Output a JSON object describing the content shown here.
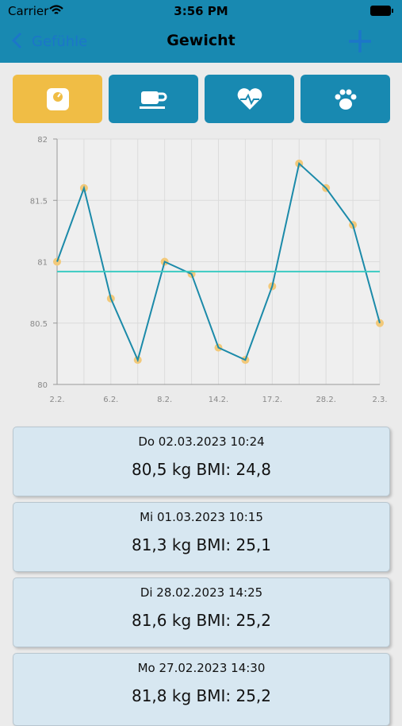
{
  "status_bar": {
    "carrier": "Carrier",
    "time": "3:56 PM"
  },
  "nav": {
    "back": "Gefühle",
    "title": "Gewicht"
  },
  "chart_data": {
    "type": "line",
    "categories": [
      "2.2.",
      null,
      "6.2.",
      null,
      "8.2.",
      null,
      "14.2.",
      null,
      "17.2.",
      null,
      "28.2.",
      null,
      "2.3."
    ],
    "values": [
      81,
      81.6,
      80.7,
      80.2,
      81,
      80.9,
      80.3,
      80.2,
      80.8,
      81.8,
      81.6,
      81.3,
      80.5
    ],
    "color": "#1b8aa9",
    "marker_color": "#f2c97a",
    "reference_line": 80.92,
    "reference_color": "#3ccbc2",
    "ylim": [
      80,
      82
    ],
    "yticks": [
      80,
      80.5,
      81,
      81.5,
      82
    ],
    "grid": true
  },
  "entries": [
    {
      "date": "Do 02.03.2023 10:24",
      "summary": "80,5 kg BMI: 24,8"
    },
    {
      "date": "Mi 01.03.2023 10:15",
      "summary": "81,3 kg BMI: 25,1"
    },
    {
      "date": "Di 28.02.2023 14:25",
      "summary": "81,6 kg BMI: 25,2"
    },
    {
      "date": "Mo 27.02.2023 14:30",
      "summary": "81,8 kg BMI: 25,2"
    }
  ]
}
